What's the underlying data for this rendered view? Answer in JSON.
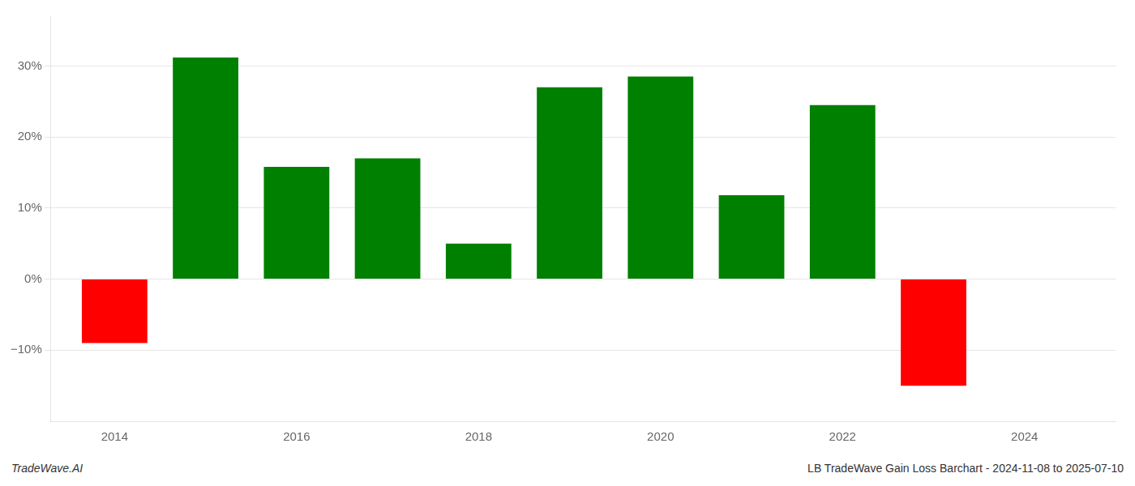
{
  "chart_data": {
    "type": "bar",
    "x": [
      2014,
      2015,
      2016,
      2017,
      2018,
      2019,
      2020,
      2021,
      2022,
      2023
    ],
    "values": [
      -9.0,
      31.2,
      15.8,
      17.0,
      5.0,
      27.0,
      28.5,
      11.8,
      24.5,
      -15.0
    ],
    "colors": [
      "#ff0000",
      "#008000",
      "#008000",
      "#008000",
      "#008000",
      "#008000",
      "#008000",
      "#008000",
      "#008000",
      "#ff0000"
    ],
    "xlim": [
      2013.3,
      2025.0
    ],
    "xticks": [
      2014,
      2016,
      2018,
      2020,
      2022,
      2024
    ],
    "ylim": [
      -20,
      37
    ],
    "yticks": [
      {
        "value": -10,
        "label": "−10%"
      },
      {
        "value": 0,
        "label": "0%"
      },
      {
        "value": 10,
        "label": "10%"
      },
      {
        "value": 20,
        "label": "20%"
      },
      {
        "value": 30,
        "label": "30%"
      }
    ],
    "grid": "y",
    "annotations": [
      "TradeWave.AI",
      "LB TradeWave Gain Loss Barchart - 2024-11-08 to 2025-07-10"
    ]
  }
}
